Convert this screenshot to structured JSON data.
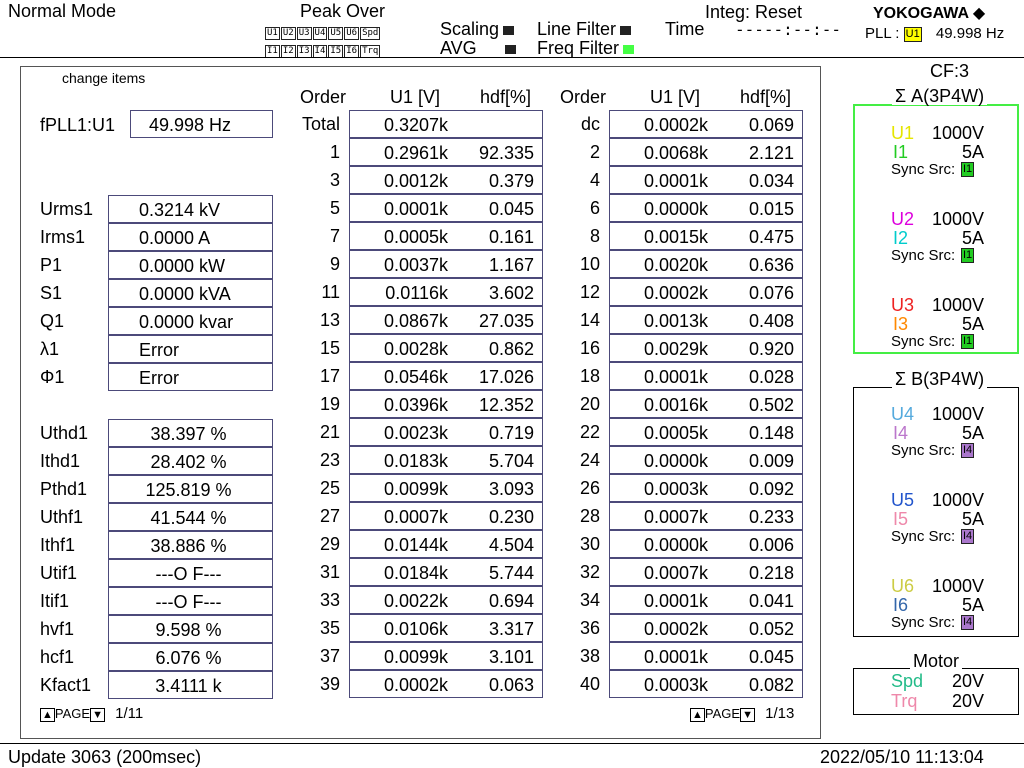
{
  "header": {
    "mode": "Normal Mode",
    "peak_over": "Peak Over",
    "peak_row1": [
      "U1",
      "U2",
      "U3",
      "U4",
      "U5",
      "U6",
      "Spd"
    ],
    "peak_row2": [
      "I1",
      "I2",
      "I3",
      "I4",
      "I5",
      "I6",
      "Trq"
    ],
    "scaling": "Scaling",
    "avg": "AVG",
    "line_filter": "Line Filter",
    "freq_filter": "Freq Filter",
    "time_label": "Time",
    "time_value": "-----:--:--",
    "integ": "Integ: Reset",
    "brand": "YOKOGAWA",
    "pll_label": "PLL :",
    "pll_src": "U1",
    "pll_value": "49.998  Hz"
  },
  "panel": {
    "change_items": "change items",
    "fpll_label": "fPLL1:U1",
    "fpll_value": "49.998   Hz",
    "measurements": [
      {
        "label": "Urms1",
        "value": "0.3214 kV"
      },
      {
        "label": "Irms1",
        "value": "0.0000   A"
      },
      {
        "label": "P1",
        "value": "0.0000 kW"
      },
      {
        "label": "S1",
        "value": "0.0000 kVA"
      },
      {
        "label": "Q1",
        "value": "0.0000 kvar"
      },
      {
        "label": "λ1",
        "value": "Error"
      },
      {
        "label": "Φ1",
        "value": "Error"
      }
    ],
    "measurements2": [
      {
        "label": "Uthd1",
        "value": "38.397   %"
      },
      {
        "label": "Ithd1",
        "value": "28.402   %"
      },
      {
        "label": "Pthd1",
        "value": "125.819   %"
      },
      {
        "label": "Uthf1",
        "value": "41.544   %"
      },
      {
        "label": "Ithf1",
        "value": "38.886   %"
      },
      {
        "label": "Utif1",
        "value": "---O F---"
      },
      {
        "label": "Itif1",
        "value": "---O F---"
      },
      {
        "label": "hvf1",
        "value": "9.598   %"
      },
      {
        "label": "hcf1",
        "value": "6.076   %"
      },
      {
        "label": "Kfact1",
        "value": "3.4111  k"
      }
    ],
    "left_page": "PAGE",
    "left_page_num": "1/11",
    "right_page": "PAGE",
    "right_page_num": "1/13",
    "table_headers": [
      "Order",
      "U1 [V]",
      "hdf[%]"
    ],
    "left_table": [
      [
        "Total",
        "0.3207k",
        ""
      ],
      [
        "1",
        "0.2961k",
        "92.335"
      ],
      [
        "3",
        "0.0012k",
        "0.379"
      ],
      [
        "5",
        "0.0001k",
        "0.045"
      ],
      [
        "7",
        "0.0005k",
        "0.161"
      ],
      [
        "9",
        "0.0037k",
        "1.167"
      ],
      [
        "11",
        "0.0116k",
        "3.602"
      ],
      [
        "13",
        "0.0867k",
        "27.035"
      ],
      [
        "15",
        "0.0028k",
        "0.862"
      ],
      [
        "17",
        "0.0546k",
        "17.026"
      ],
      [
        "19",
        "0.0396k",
        "12.352"
      ],
      [
        "21",
        "0.0023k",
        "0.719"
      ],
      [
        "23",
        "0.0183k",
        "5.704"
      ],
      [
        "25",
        "0.0099k",
        "3.093"
      ],
      [
        "27",
        "0.0007k",
        "0.230"
      ],
      [
        "29",
        "0.0144k",
        "4.504"
      ],
      [
        "31",
        "0.0184k",
        "5.744"
      ],
      [
        "33",
        "0.0022k",
        "0.694"
      ],
      [
        "35",
        "0.0106k",
        "3.317"
      ],
      [
        "37",
        "0.0099k",
        "3.101"
      ],
      [
        "39",
        "0.0002k",
        "0.063"
      ]
    ],
    "right_table": [
      [
        "dc",
        "0.0002k",
        "0.069"
      ],
      [
        "2",
        "0.0068k",
        "2.121"
      ],
      [
        "4",
        "0.0001k",
        "0.034"
      ],
      [
        "6",
        "0.0000k",
        "0.015"
      ],
      [
        "8",
        "0.0015k",
        "0.475"
      ],
      [
        "10",
        "0.0020k",
        "0.636"
      ],
      [
        "12",
        "0.0002k",
        "0.076"
      ],
      [
        "14",
        "0.0013k",
        "0.408"
      ],
      [
        "16",
        "0.0029k",
        "0.920"
      ],
      [
        "18",
        "0.0001k",
        "0.028"
      ],
      [
        "20",
        "0.0016k",
        "0.502"
      ],
      [
        "22",
        "0.0005k",
        "0.148"
      ],
      [
        "24",
        "0.0000k",
        "0.009"
      ],
      [
        "26",
        "0.0003k",
        "0.092"
      ],
      [
        "28",
        "0.0007k",
        "0.233"
      ],
      [
        "30",
        "0.0000k",
        "0.006"
      ],
      [
        "32",
        "0.0007k",
        "0.218"
      ],
      [
        "34",
        "0.0001k",
        "0.041"
      ],
      [
        "36",
        "0.0002k",
        "0.052"
      ],
      [
        "38",
        "0.0001k",
        "0.045"
      ],
      [
        "40",
        "0.0003k",
        "0.082"
      ]
    ]
  },
  "sidebar": {
    "cf": "CF:3",
    "group_a_title": "Σ A(3P4W)",
    "group_a": [
      {
        "u": "U1",
        "u_range": "1000V",
        "i": "I1",
        "i_range": "5A",
        "sync": "Sync Src:",
        "src": "I1",
        "ucolor": "#e6e600",
        "icolor": "#22cc22"
      },
      {
        "u": "U2",
        "u_range": "1000V",
        "i": "I2",
        "i_range": "5A",
        "sync": "Sync Src:",
        "src": "I1",
        "ucolor": "#dd00dd",
        "icolor": "#00cccc"
      },
      {
        "u": "U3",
        "u_range": "1000V",
        "i": "I3",
        "i_range": "5A",
        "sync": "Sync Src:",
        "src": "I1",
        "ucolor": "#ee2222",
        "icolor": "#ff8800"
      }
    ],
    "group_b_title": "Σ B(3P4W)",
    "group_b": [
      {
        "u": "U4",
        "u_range": "1000V",
        "i": "I4",
        "i_range": "5A",
        "sync": "Sync Src:",
        "src": "I4",
        "ucolor": "#55aadd",
        "icolor": "#bb77cc"
      },
      {
        "u": "U5",
        "u_range": "1000V",
        "i": "I5",
        "i_range": "5A",
        "sync": "Sync Src:",
        "src": "I4",
        "ucolor": "#2255cc",
        "icolor": "#ee88aa"
      },
      {
        "u": "U6",
        "u_range": "1000V",
        "i": "I6",
        "i_range": "5A",
        "sync": "Sync Src:",
        "src": "I4",
        "ucolor": "#cccc44",
        "icolor": "#3366aa"
      }
    ],
    "motor_title": "Motor",
    "motor": [
      {
        "label": "Spd",
        "value": "20V",
        "color": "#22bb88"
      },
      {
        "label": "Trq",
        "value": "20V",
        "color": "#ee88aa"
      }
    ]
  },
  "footer": {
    "update": "Update   3063 (200msec)",
    "datetime": "2022/05/10 11:13:04"
  }
}
